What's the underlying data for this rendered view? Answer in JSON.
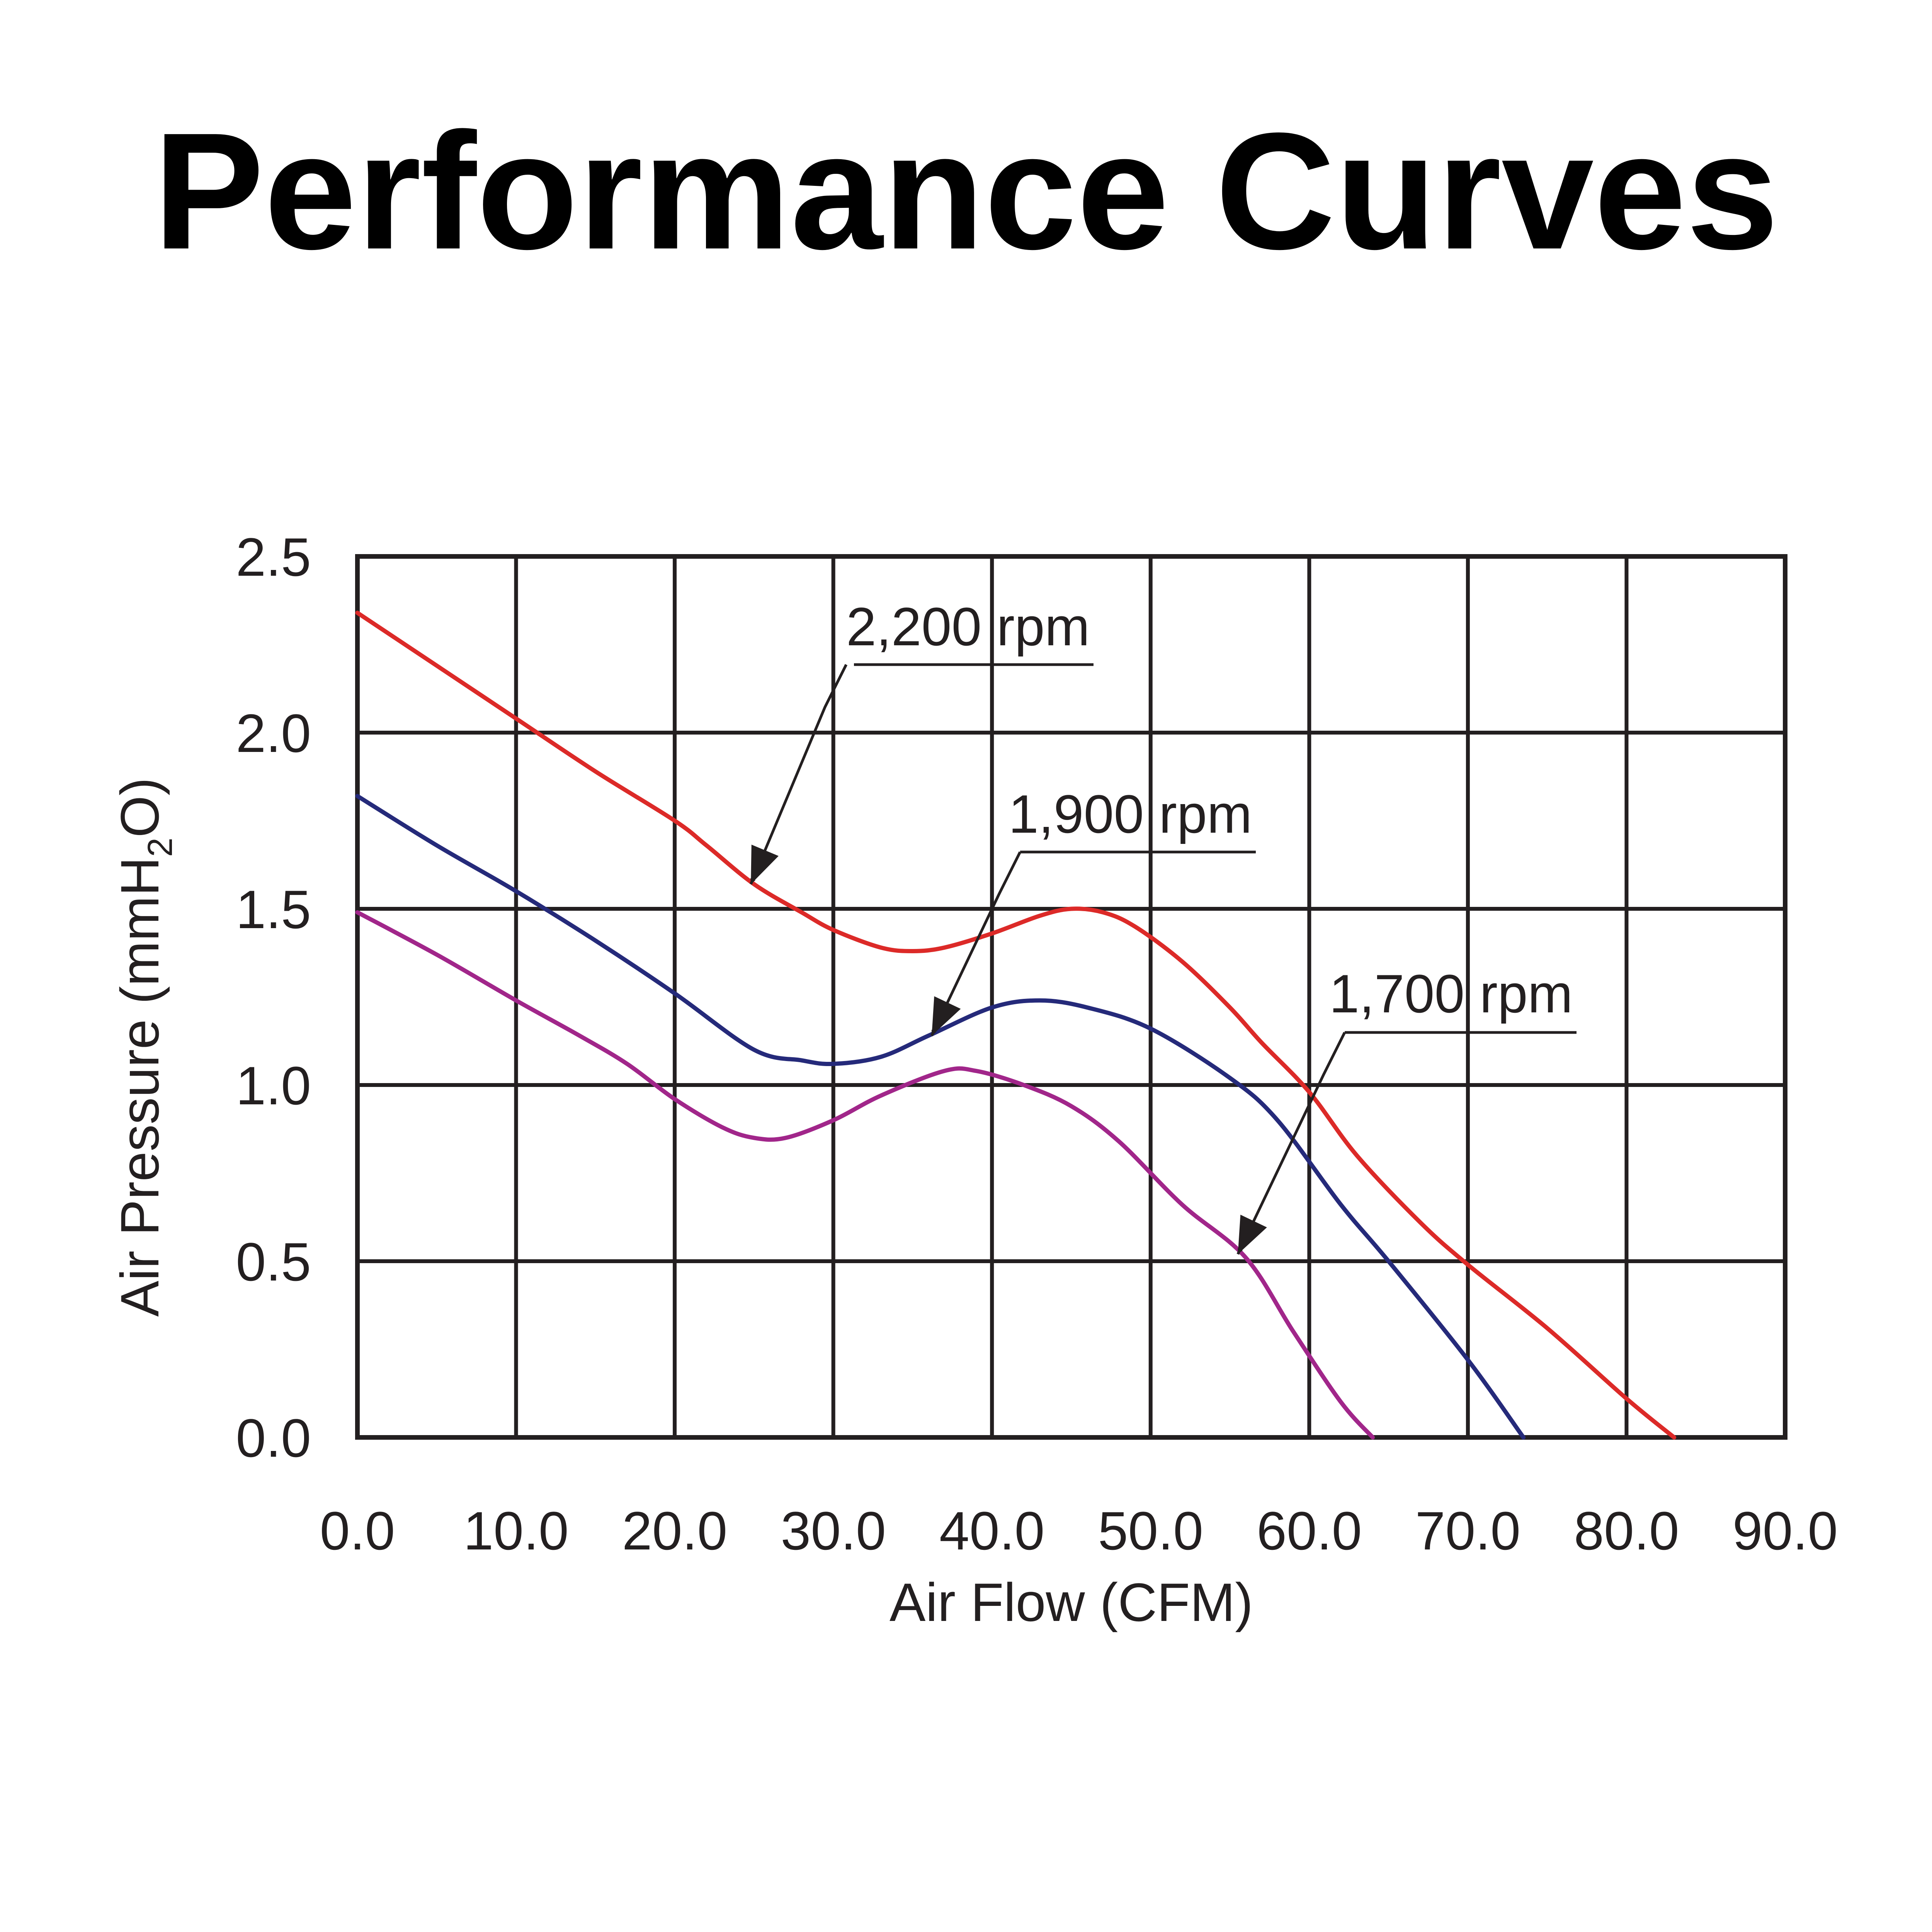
{
  "chart_data": {
    "type": "line",
    "title": "Performance Curves",
    "xlabel": "Air Flow (CFM)",
    "ylabel": {
      "main": "Air Pressure (mmH",
      "sub": "2",
      "end": "O)"
    },
    "xlim": [
      0,
      90
    ],
    "ylim": [
      0,
      2.5
    ],
    "x_ticks": [
      "0.0",
      "10.0",
      "20.0",
      "30.0",
      "40.0",
      "50.0",
      "60.0",
      "70.0",
      "80.0",
      "90.0"
    ],
    "y_ticks": [
      "0.0",
      "0.5",
      "1.0",
      "1.5",
      "2.0",
      "2.5"
    ],
    "grid": true,
    "series": [
      {
        "name": "2,200 rpm",
        "color": "#dc2a28",
        "x": [
          0,
          5,
          10,
          15,
          20,
          22,
          25,
          28,
          30,
          33,
          35,
          37,
          40,
          43,
          45,
          47,
          49,
          52,
          55,
          57,
          60,
          63,
          67,
          70,
          75,
          80,
          83
        ],
        "y": [
          2.34,
          2.19,
          2.04,
          1.89,
          1.75,
          1.68,
          1.57,
          1.49,
          1.44,
          1.39,
          1.38,
          1.39,
          1.43,
          1.48,
          1.5,
          1.49,
          1.45,
          1.35,
          1.22,
          1.12,
          0.98,
          0.8,
          0.61,
          0.49,
          0.31,
          0.11,
          0.0
        ]
      },
      {
        "name": "1,900 rpm",
        "color": "#252a7a",
        "x": [
          0,
          5,
          10,
          15,
          20,
          25,
          28,
          30,
          33,
          36,
          40,
          43,
          46,
          50,
          55,
          58,
          62,
          65,
          70,
          73.5
        ],
        "y": [
          1.82,
          1.68,
          1.55,
          1.41,
          1.26,
          1.1,
          1.07,
          1.06,
          1.08,
          1.14,
          1.22,
          1.24,
          1.22,
          1.16,
          1.02,
          0.9,
          0.66,
          0.5,
          0.22,
          0.0
        ]
      },
      {
        "name": "1,700 rpm",
        "color": "#a1268a",
        "x": [
          0,
          5,
          10,
          14,
          17,
          20,
          23,
          25,
          27,
          30,
          33,
          37,
          39,
          42,
          45,
          48,
          52,
          56,
          59,
          62,
          64
        ],
        "y": [
          1.49,
          1.37,
          1.24,
          1.14,
          1.06,
          0.96,
          0.88,
          0.85,
          0.85,
          0.9,
          0.97,
          1.04,
          1.04,
          1.0,
          0.94,
          0.84,
          0.66,
          0.51,
          0.3,
          0.1,
          0.0
        ]
      }
    ],
    "annotations": [
      {
        "series": "2,200 rpm",
        "text": "2,200 rpm",
        "point": [
          24.8,
          1.57
        ]
      },
      {
        "series": "1,900 rpm",
        "text": "1,900 rpm",
        "point": [
          36.2,
          1.14
        ]
      },
      {
        "series": "1,700 rpm",
        "text": "1,700 rpm",
        "point": [
          55.5,
          0.52
        ]
      }
    ]
  }
}
